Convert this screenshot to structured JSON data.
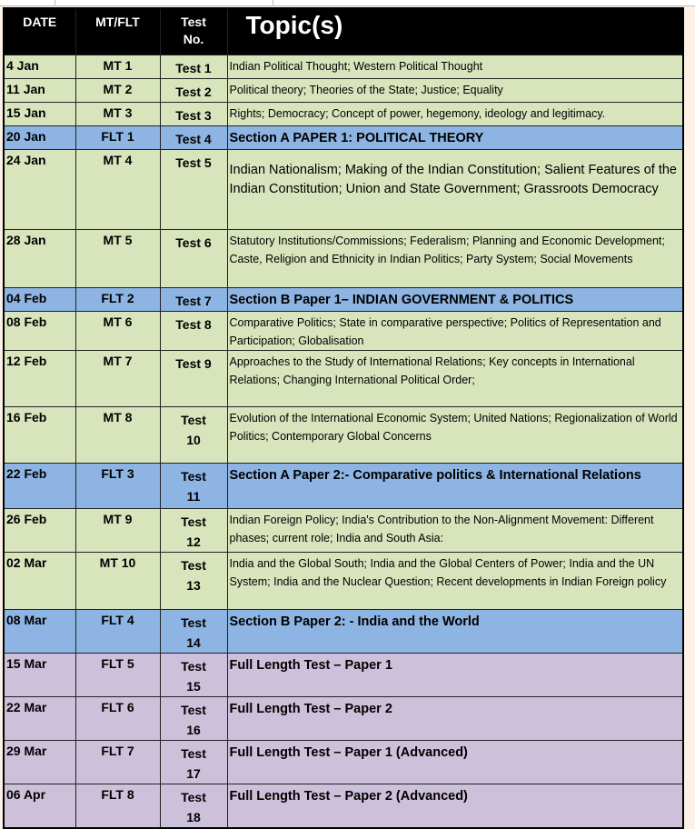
{
  "colors": {
    "header": "#000000",
    "mock_test_row": "#d8e4bc",
    "section_test_row": "#8db4e2",
    "full_length_row": "#ccc0da",
    "page_background": "#fdf0e6"
  },
  "header": {
    "date": "DATE",
    "type": "MT/FLT",
    "test_line1": "Test",
    "test_line2": "No.",
    "topic": "Topic(s)"
  },
  "rows": [
    {
      "date": "4 Jan",
      "type": "MT 1",
      "test": "Test 1",
      "topic": "Indian Political Thought; Western Political Thought",
      "kind": "green",
      "style": "normal"
    },
    {
      "date": "11 Jan",
      "type": "MT 2",
      "test": "Test 2",
      "topic": "Political theory; Theories of the State; Justice; Equality",
      "kind": "green",
      "style": "normal"
    },
    {
      "date": "15 Jan",
      "type": "MT 3",
      "test": "Test 3",
      "topic": "Rights; Democracy; Concept of power, hegemony, ideology and legitimacy.",
      "kind": "green",
      "style": "normal"
    },
    {
      "date": "20 Jan",
      "type": "FLT 1",
      "test": "Test 4",
      "topic": "Section A PAPER 1: POLITICAL THEORY",
      "kind": "blue",
      "style": "bold"
    },
    {
      "date": "24 Jan",
      "type": "MT 4",
      "test": "Test 5",
      "topic": "Indian Nationalism; Making of the Indian Constitution; Salient Features of the Indian Constitution; Union and State Government; Grassroots Democracy",
      "kind": "green",
      "style": "large"
    },
    {
      "date": "28 Jan",
      "type": "MT 5",
      "test": "Test 6",
      "topic": "Statutory Institutions/Commissions; Federalism; Planning and Economic Development; Caste, Religion and Ethnicity in Indian Politics; Party System; Social Movements",
      "kind": "green",
      "style": "normal"
    },
    {
      "date": "04 Feb",
      "type": "FLT 2",
      "test": "Test 7",
      "topic": "Section B Paper 1– INDIAN GOVERNMENT & POLITICS",
      "kind": "blue",
      "style": "bold"
    },
    {
      "date": "08 Feb",
      "type": "MT 6",
      "test": "Test 8",
      "topic": "Comparative Politics; State in comparative perspective; Politics of Representation and Participation; Globalisation",
      "kind": "green",
      "style": "normal"
    },
    {
      "date": "12 Feb",
      "type": "MT 7",
      "test": "Test 9",
      "topic": "Approaches to the Study of International Relations; Key concepts in International Relations; Changing International Political Order;",
      "kind": "green",
      "style": "normal"
    },
    {
      "date": "16 Feb",
      "type": "MT 8",
      "test": "Test 10",
      "topic": "Evolution of the International Economic System; United Nations; Regionalization of World Politics; Contemporary Global Concerns",
      "kind": "green",
      "style": "normal"
    },
    {
      "date": "22 Feb",
      "type": "FLT 3",
      "test": "Test 11",
      "topic": "Section A Paper 2:- Comparative politics & International Relations",
      "kind": "blue",
      "style": "bold"
    },
    {
      "date": "26 Feb",
      "type": "MT 9",
      "test": "Test 12",
      "topic": "Indian Foreign Policy; India's Contribution to the Non-Alignment Movement: Different phases; current role; India and South Asia:",
      "kind": "green",
      "style": "normal"
    },
    {
      "date": "02 Mar",
      "type": "MT 10",
      "test": "Test 13",
      "topic": "India and the Global South; India and the Global Centers of Power; India and the UN System; India and the Nuclear Question; Recent developments in Indian Foreign policy",
      "kind": "green",
      "style": "normal"
    },
    {
      "date": "08 Mar",
      "type": "FLT 4",
      "test": "Test 14",
      "topic": "Section B Paper 2: - India and the World",
      "kind": "blue",
      "style": "bold"
    },
    {
      "date": "15 Mar",
      "type": "FLT 5",
      "test": "Test 15",
      "topic": "Full Length Test – Paper 1",
      "kind": "purple",
      "style": "bold"
    },
    {
      "date": "22 Mar",
      "type": "FLT 6",
      "test": "Test 16",
      "topic": "Full Length Test – Paper 2",
      "kind": "purple",
      "style": "bold"
    },
    {
      "date": "29 Mar",
      "type": "FLT 7",
      "test": "Test 17",
      "topic": "Full Length Test – Paper 1 (Advanced)",
      "kind": "purple",
      "style": "bold"
    },
    {
      "date": "06 Apr",
      "type": "FLT 8",
      "test": "Test 18",
      "topic": "Full Length Test – Paper 2 (Advanced)",
      "kind": "purple",
      "style": "bold"
    }
  ]
}
